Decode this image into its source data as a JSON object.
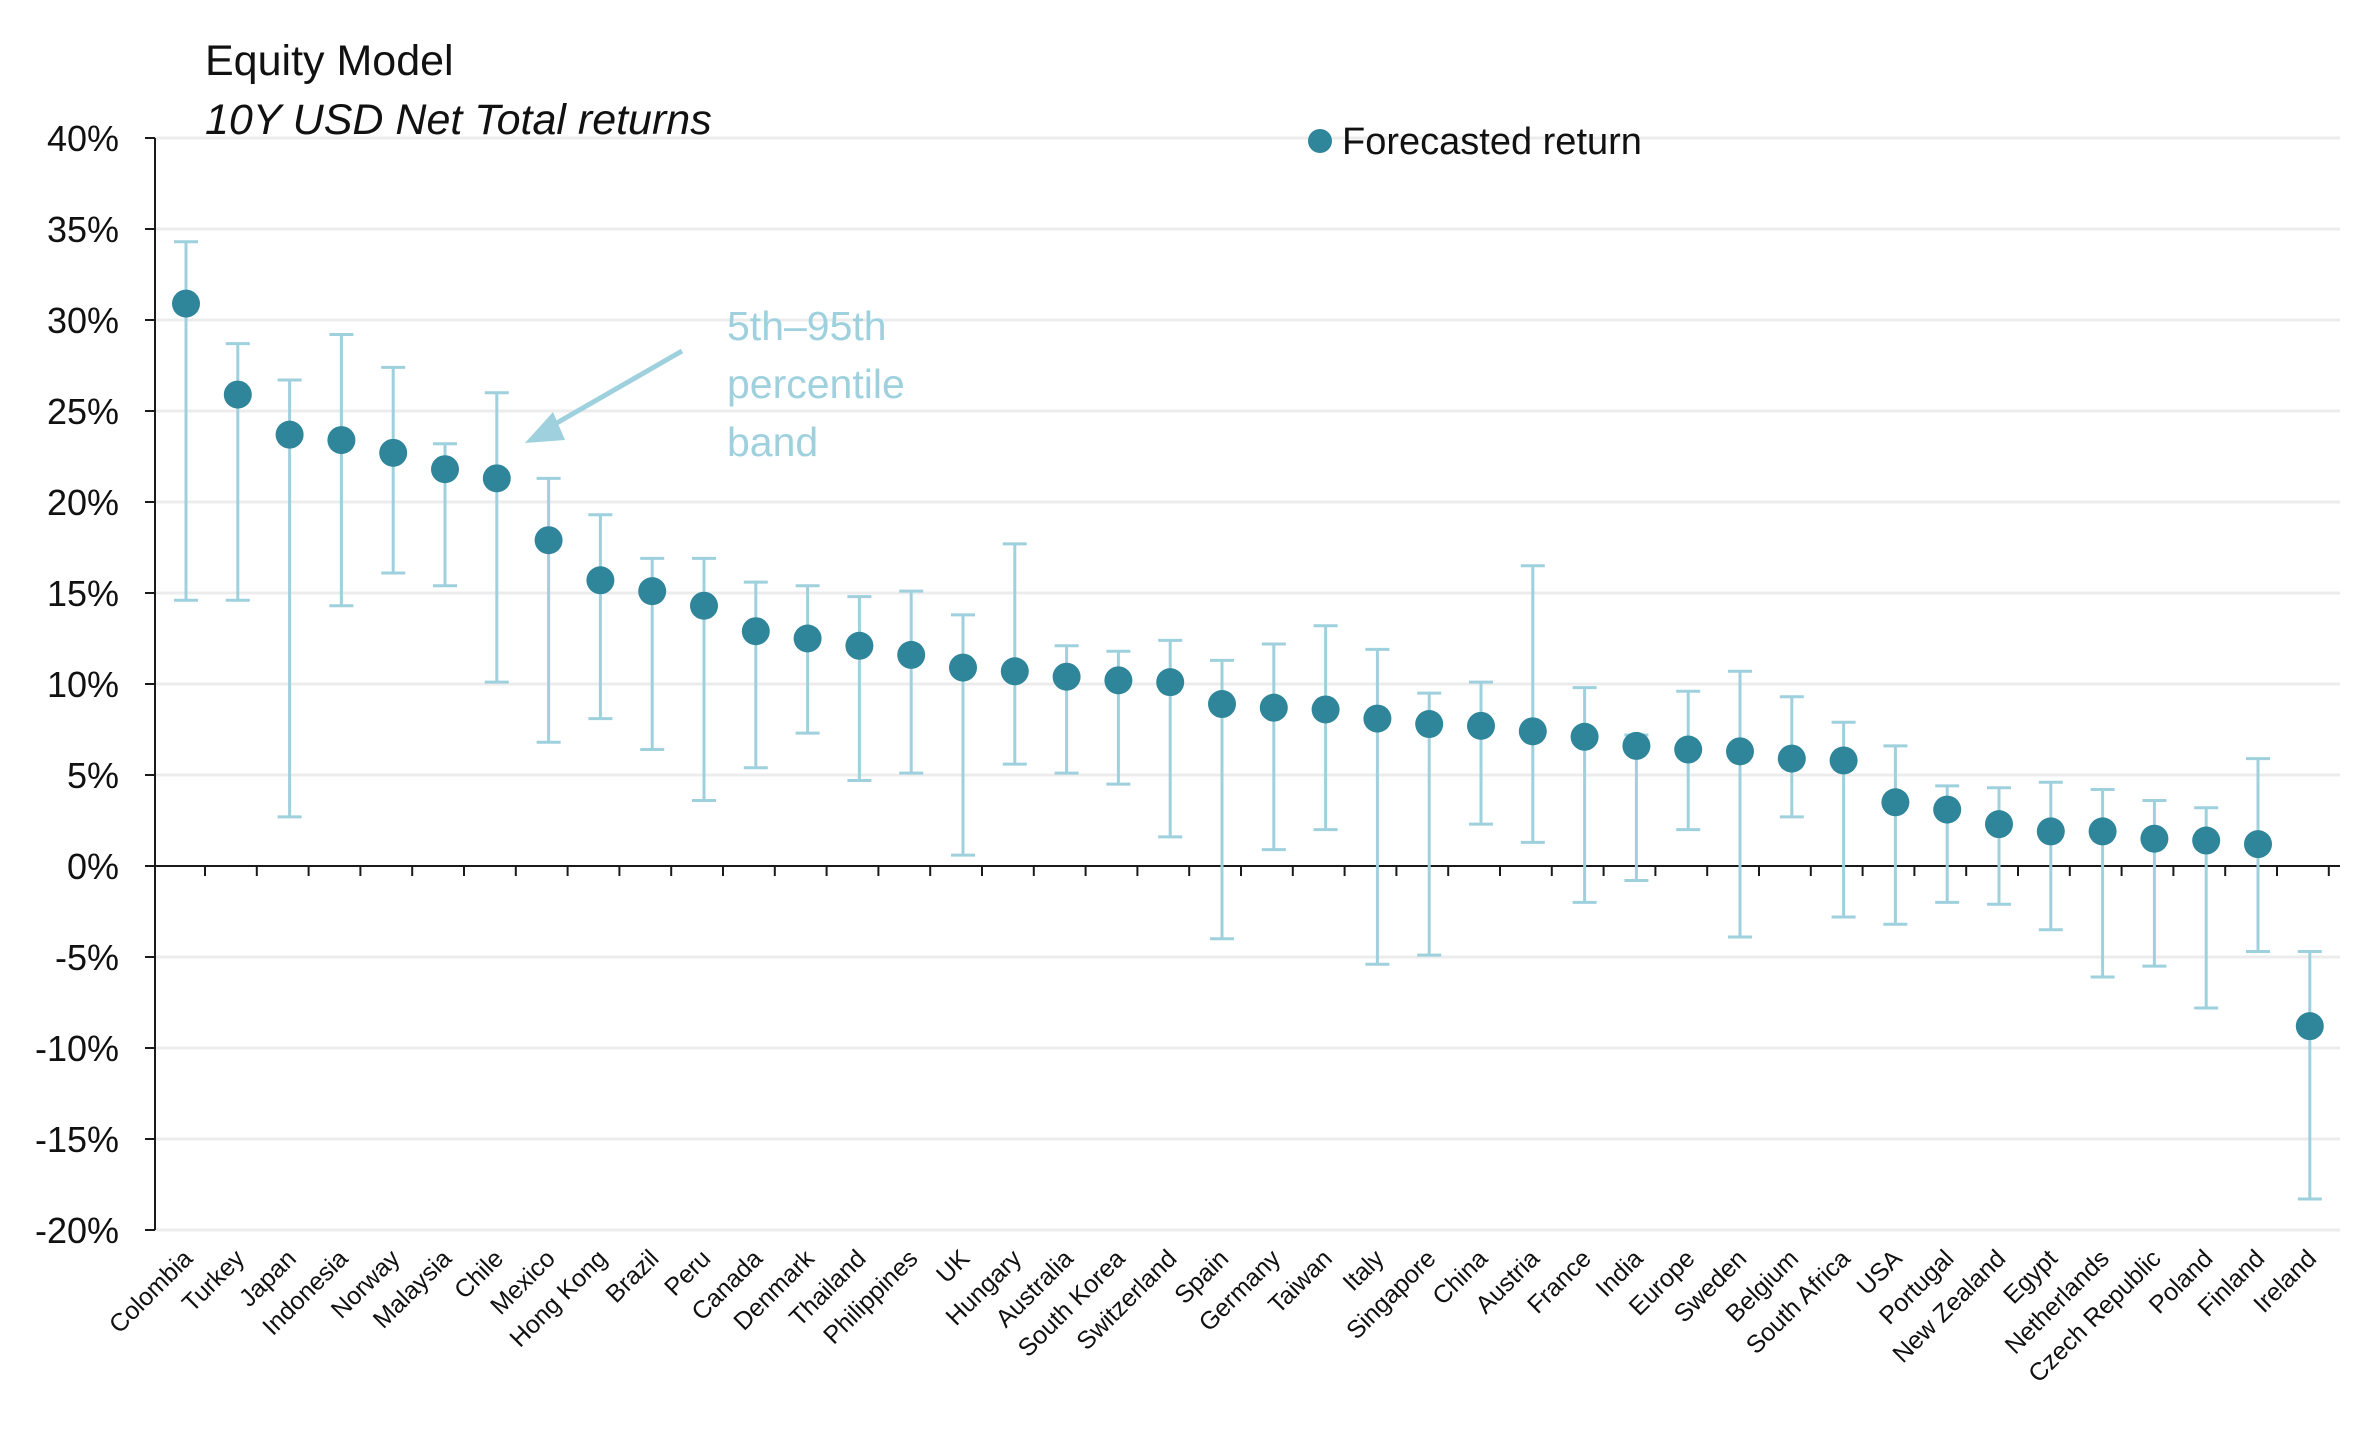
{
  "chart_data": {
    "type": "scatter",
    "title": "Equity Model",
    "subtitle": "10Y USD Net Total returns",
    "xlabel": "",
    "ylabel": "",
    "ylim": [
      -20,
      40
    ],
    "y_ticks": [
      -20,
      -15,
      -10,
      -5,
      0,
      5,
      10,
      15,
      20,
      25,
      30,
      35,
      40
    ],
    "y_tick_labels": [
      "-20%",
      "-15%",
      "-10%",
      "-5%",
      "0%",
      "5%",
      "10%",
      "15%",
      "20%",
      "25%",
      "30%",
      "35%",
      "40%"
    ],
    "grid": true,
    "legend": {
      "position": "top-center",
      "entries": [
        "Forecasted return"
      ]
    },
    "colors": {
      "point": "#2f8599",
      "band": "#9ed1dd",
      "grid": "#ececec",
      "axis": "#1a1a1a"
    },
    "annotation": {
      "text_lines": [
        "5th–95th",
        "percentile",
        "band"
      ]
    },
    "categories": [
      "Colombia",
      "Turkey",
      "Japan",
      "Indonesia",
      "Norway",
      "Malaysia",
      "Chile",
      "Mexico",
      "Hong Kong",
      "Brazil",
      "Peru",
      "Canada",
      "Denmark",
      "Thailand",
      "Philippines",
      "UK",
      "Hungary",
      "Australia",
      "South Korea",
      "Switzerland",
      "Spain",
      "Germany",
      "Taiwan",
      "Italy",
      "Singapore",
      "China",
      "Austria",
      "France",
      "India",
      "Europe",
      "Sweden",
      "Belgium",
      "South Africa",
      "USA",
      "Portugal",
      "New Zealand",
      "Egypt",
      "Netherlands",
      "Czech Republic",
      "Poland",
      "Finland",
      "Ireland"
    ],
    "series": [
      {
        "name": "Forecasted return",
        "values": [
          30.9,
          25.9,
          23.7,
          23.4,
          22.7,
          21.8,
          21.3,
          17.9,
          15.7,
          15.1,
          14.3,
          12.9,
          12.5,
          12.1,
          11.6,
          10.9,
          10.7,
          10.4,
          10.2,
          10.1,
          8.9,
          8.7,
          8.6,
          8.1,
          7.8,
          7.7,
          7.4,
          7.1,
          6.6,
          6.4,
          6.3,
          5.9,
          5.8,
          3.5,
          3.1,
          2.3,
          1.9,
          1.9,
          1.5,
          1.4,
          1.2,
          -8.8
        ]
      }
    ],
    "band": {
      "name": "5th–95th percentile band",
      "low": [
        14.6,
        14.6,
        2.7,
        14.3,
        16.1,
        15.4,
        10.1,
        6.8,
        8.1,
        6.4,
        3.6,
        5.4,
        7.3,
        4.7,
        5.1,
        0.6,
        5.6,
        5.1,
        4.5,
        1.6,
        -4.0,
        0.9,
        2.0,
        -5.4,
        -4.9,
        2.3,
        1.3,
        -2.0,
        -0.8,
        2.0,
        -3.9,
        2.7,
        -2.8,
        -3.2,
        -2.0,
        -2.1,
        -3.5,
        -6.1,
        -5.5,
        -7.8,
        -4.7,
        -18.3
      ],
      "high": [
        34.3,
        28.7,
        26.7,
        29.2,
        27.4,
        23.2,
        26.0,
        21.3,
        19.3,
        16.9,
        16.9,
        15.6,
        15.4,
        14.8,
        15.1,
        13.8,
        17.7,
        12.1,
        11.8,
        12.4,
        11.3,
        12.2,
        13.2,
        11.9,
        9.5,
        10.1,
        16.5,
        9.8,
        7.2,
        9.6,
        10.7,
        9.3,
        7.9,
        6.6,
        4.4,
        4.3,
        4.6,
        4.2,
        3.6,
        3.2,
        5.9,
        -4.7
      ]
    }
  }
}
